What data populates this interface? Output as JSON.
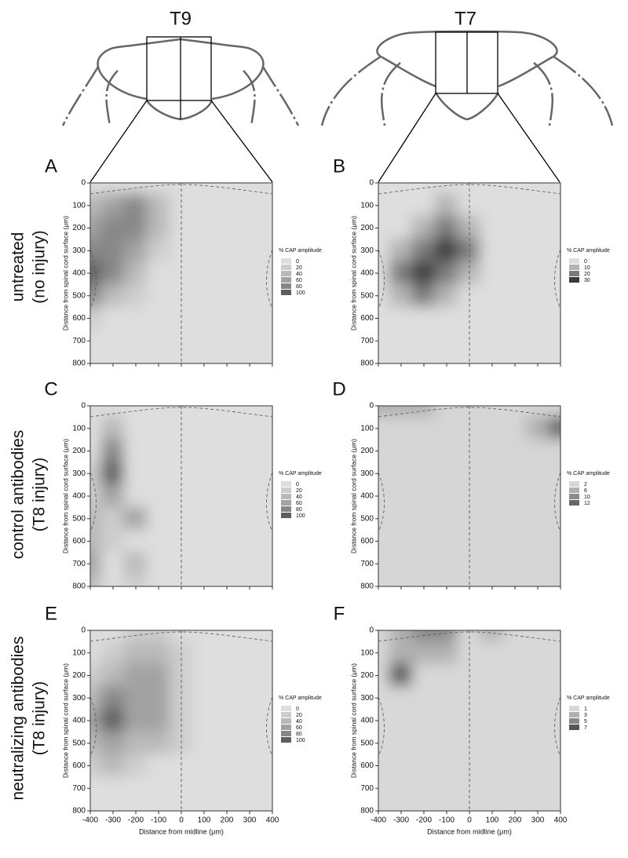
{
  "diagrams": [
    {
      "label": "T9"
    },
    {
      "label": "T7"
    }
  ],
  "row_labels": [
    [
      "untreated",
      "(no injury)"
    ],
    [
      "control  antibodies",
      "(T8 injury)"
    ],
    [
      "neutralizing antibodies",
      "(T8 injury)"
    ]
  ],
  "chart_data": [
    {
      "type": "contour",
      "panel": "A",
      "x": [
        -400,
        -300,
        -200,
        -100,
        0,
        100,
        200,
        300,
        400
      ],
      "y": [
        0,
        100,
        200,
        300,
        400,
        500,
        600,
        700,
        800
      ],
      "z": [
        [
          0,
          0,
          0,
          0,
          0,
          0,
          0,
          0,
          0
        ],
        [
          40,
          60,
          80,
          40,
          0,
          0,
          0,
          0,
          0
        ],
        [
          60,
          80,
          80,
          40,
          0,
          0,
          0,
          0,
          0
        ],
        [
          80,
          80,
          60,
          20,
          0,
          0,
          0,
          0,
          0
        ],
        [
          100,
          80,
          40,
          0,
          0,
          0,
          0,
          0,
          0
        ],
        [
          80,
          40,
          20,
          0,
          0,
          0,
          0,
          0,
          0
        ],
        [
          20,
          0,
          0,
          0,
          0,
          0,
          0,
          0,
          0
        ],
        [
          0,
          0,
          0,
          0,
          0,
          0,
          0,
          0,
          0
        ],
        [
          0,
          0,
          0,
          0,
          0,
          0,
          0,
          0,
          0
        ]
      ],
      "xlim": [
        -400,
        400
      ],
      "ylim": [
        0,
        800
      ],
      "invert_y": true,
      "xticks": [
        -400,
        -300,
        -200,
        -100,
        0,
        100,
        200,
        300,
        400
      ],
      "yticks": [
        0,
        100,
        200,
        300,
        400,
        500,
        600,
        700,
        800
      ],
      "show_xtick_labels": false,
      "ylabel": "Distance from spinal cord surface (μm)",
      "legend_title": "% CAP amplitude",
      "levels": [
        0,
        20,
        40,
        60,
        80,
        100
      ],
      "level_colors": [
        "#dedede",
        "#cdcdcd",
        "#b9b9b9",
        "#a2a2a2",
        "#878787",
        "#5e5e5e"
      ]
    },
    {
      "type": "contour",
      "panel": "B",
      "x": [
        -400,
        -300,
        -200,
        -100,
        0,
        100,
        200,
        300,
        400
      ],
      "y": [
        0,
        100,
        200,
        300,
        400,
        500,
        600,
        700,
        800
      ],
      "z": [
        [
          0,
          0,
          0,
          0,
          0,
          0,
          0,
          0,
          0
        ],
        [
          0,
          0,
          0,
          10,
          0,
          0,
          0,
          0,
          0
        ],
        [
          0,
          0,
          10,
          20,
          10,
          0,
          0,
          0,
          0
        ],
        [
          0,
          10,
          20,
          30,
          20,
          0,
          0,
          0,
          0
        ],
        [
          0,
          20,
          30,
          20,
          10,
          0,
          0,
          0,
          0
        ],
        [
          0,
          10,
          20,
          10,
          0,
          0,
          0,
          0,
          0
        ],
        [
          0,
          0,
          0,
          0,
          0,
          0,
          0,
          0,
          0
        ],
        [
          0,
          0,
          0,
          0,
          0,
          0,
          0,
          0,
          0
        ],
        [
          0,
          0,
          0,
          0,
          0,
          0,
          0,
          0,
          0
        ]
      ],
      "xlim": [
        -400,
        400
      ],
      "ylim": [
        0,
        800
      ],
      "invert_y": true,
      "xticks": [
        -400,
        -300,
        -200,
        -100,
        0,
        100,
        200,
        300,
        400
      ],
      "yticks": [
        0,
        100,
        200,
        300,
        400,
        500,
        600,
        700,
        800
      ],
      "show_xtick_labels": false,
      "ylabel": "Distance from spinal cord surface (μm)",
      "legend_title": "% CAP amplitude",
      "levels": [
        0,
        10,
        20,
        30
      ],
      "level_colors": [
        "#dedede",
        "#b4b4b4",
        "#7a7a7a",
        "#3a3a3a"
      ]
    },
    {
      "type": "contour",
      "panel": "C",
      "x": [
        -400,
        -300,
        -200,
        -100,
        0,
        100,
        200,
        300,
        400
      ],
      "y": [
        0,
        100,
        200,
        300,
        400,
        500,
        600,
        700,
        800
      ],
      "z": [
        [
          0,
          0,
          0,
          0,
          0,
          0,
          0,
          0,
          0
        ],
        [
          0,
          40,
          0,
          0,
          0,
          0,
          0,
          0,
          0
        ],
        [
          0,
          80,
          0,
          0,
          0,
          0,
          0,
          0,
          0
        ],
        [
          20,
          100,
          0,
          0,
          0,
          0,
          0,
          0,
          0
        ],
        [
          20,
          60,
          0,
          0,
          0,
          0,
          0,
          0,
          0
        ],
        [
          40,
          20,
          60,
          0,
          0,
          0,
          0,
          0,
          0
        ],
        [
          40,
          20,
          0,
          0,
          0,
          0,
          0,
          0,
          0
        ],
        [
          60,
          0,
          40,
          0,
          0,
          0,
          0,
          0,
          0
        ],
        [
          40,
          0,
          20,
          0,
          0,
          0,
          0,
          0,
          0
        ]
      ],
      "xlim": [
        -400,
        400
      ],
      "ylim": [
        0,
        800
      ],
      "invert_y": true,
      "xticks": [
        -400,
        -300,
        -200,
        -100,
        0,
        100,
        200,
        300,
        400
      ],
      "yticks": [
        0,
        100,
        200,
        300,
        400,
        500,
        600,
        700,
        800
      ],
      "show_xtick_labels": false,
      "ylabel": "Distance from spinal cord surface (μm)",
      "legend_title": "% CAP amplitude",
      "levels": [
        0,
        20,
        40,
        60,
        80,
        100
      ],
      "level_colors": [
        "#dedede",
        "#cdcdcd",
        "#b9b9b9",
        "#a2a2a2",
        "#878787",
        "#5e5e5e"
      ]
    },
    {
      "type": "contour",
      "panel": "D",
      "x": [
        -400,
        -300,
        -200,
        -100,
        0,
        100,
        200,
        300,
        400
      ],
      "y": [
        0,
        100,
        200,
        300,
        400,
        500,
        600,
        700,
        800
      ],
      "z": [
        [
          6,
          6,
          6,
          2,
          2,
          2,
          2,
          2,
          2
        ],
        [
          2,
          2,
          2,
          2,
          2,
          2,
          2,
          6,
          12
        ],
        [
          2,
          2,
          2,
          2,
          2,
          2,
          2,
          2,
          2
        ],
        [
          2,
          2,
          2,
          2,
          2,
          2,
          2,
          2,
          2
        ],
        [
          2,
          2,
          2,
          2,
          2,
          2,
          2,
          2,
          2
        ],
        [
          2,
          2,
          2,
          2,
          2,
          2,
          2,
          2,
          2
        ],
        [
          2,
          2,
          2,
          2,
          2,
          2,
          2,
          2,
          2
        ],
        [
          2,
          2,
          2,
          2,
          2,
          2,
          2,
          2,
          2
        ],
        [
          2,
          2,
          2,
          2,
          2,
          2,
          2,
          2,
          2
        ]
      ],
      "xlim": [
        -400,
        400
      ],
      "ylim": [
        0,
        800
      ],
      "invert_y": true,
      "xticks": [
        -400,
        -300,
        -200,
        -100,
        0,
        100,
        200,
        300,
        400
      ],
      "yticks": [
        0,
        100,
        200,
        300,
        400,
        500,
        600,
        700,
        800
      ],
      "show_xtick_labels": false,
      "ylabel": "Distance from spinal cord surface (μm)",
      "legend_title": "% CAP amplitude",
      "levels": [
        2,
        6,
        10,
        12
      ],
      "level_colors": [
        "#d6d6d6",
        "#b0b0b0",
        "#8a8a8a",
        "#666666"
      ]
    },
    {
      "type": "contour",
      "panel": "E",
      "x": [
        -400,
        -300,
        -200,
        -100,
        0,
        100,
        200,
        300,
        400
      ],
      "y": [
        0,
        100,
        200,
        300,
        400,
        500,
        600,
        700,
        800
      ],
      "z": [
        [
          0,
          0,
          20,
          20,
          0,
          0,
          0,
          0,
          0
        ],
        [
          0,
          20,
          40,
          40,
          20,
          0,
          0,
          0,
          0
        ],
        [
          20,
          40,
          60,
          60,
          20,
          0,
          0,
          0,
          0
        ],
        [
          40,
          80,
          60,
          60,
          20,
          0,
          0,
          0,
          0
        ],
        [
          60,
          100,
          60,
          60,
          20,
          0,
          0,
          0,
          0
        ],
        [
          40,
          60,
          40,
          40,
          20,
          0,
          0,
          0,
          0
        ],
        [
          20,
          40,
          20,
          0,
          0,
          0,
          0,
          0,
          0
        ],
        [
          0,
          0,
          0,
          0,
          0,
          0,
          0,
          0,
          0
        ],
        [
          0,
          0,
          0,
          0,
          0,
          0,
          0,
          0,
          0
        ]
      ],
      "xlim": [
        -400,
        400
      ],
      "ylim": [
        0,
        800
      ],
      "invert_y": true,
      "xticks": [
        -400,
        -300,
        -200,
        -100,
        0,
        100,
        200,
        300,
        400
      ],
      "yticks": [
        0,
        100,
        200,
        300,
        400,
        500,
        600,
        700,
        800
      ],
      "show_xtick_labels": true,
      "xlabel": "Distance from midline (μm)",
      "ylabel": "Distance from spinal cord surface (μm)",
      "legend_title": "% CAP amplitude",
      "levels": [
        0,
        20,
        40,
        60,
        80,
        100
      ],
      "level_colors": [
        "#dedede",
        "#cdcdcd",
        "#b9b9b9",
        "#a2a2a2",
        "#878787",
        "#5e5e5e"
      ]
    },
    {
      "type": "contour",
      "panel": "F",
      "x": [
        -400,
        -300,
        -200,
        -100,
        0,
        100,
        200,
        300,
        400
      ],
      "y": [
        0,
        100,
        200,
        300,
        400,
        500,
        600,
        700,
        800
      ],
      "z": [
        [
          1,
          3,
          5,
          5,
          1,
          3,
          1,
          1,
          1
        ],
        [
          1,
          3,
          3,
          3,
          1,
          1,
          1,
          1,
          1
        ],
        [
          1,
          7,
          1,
          1,
          1,
          1,
          1,
          1,
          1
        ],
        [
          1,
          1,
          1,
          1,
          1,
          1,
          1,
          1,
          1
        ],
        [
          1,
          1,
          1,
          1,
          1,
          1,
          1,
          1,
          1
        ],
        [
          1,
          1,
          1,
          1,
          1,
          1,
          1,
          1,
          1
        ],
        [
          1,
          1,
          1,
          1,
          1,
          1,
          1,
          1,
          1
        ],
        [
          1,
          1,
          1,
          1,
          1,
          1,
          1,
          1,
          1
        ],
        [
          1,
          1,
          1,
          1,
          1,
          1,
          1,
          1,
          1
        ]
      ],
      "xlim": [
        -400,
        400
      ],
      "ylim": [
        0,
        800
      ],
      "invert_y": true,
      "xticks": [
        -400,
        -300,
        -200,
        -100,
        0,
        100,
        200,
        300,
        400
      ],
      "yticks": [
        0,
        100,
        200,
        300,
        400,
        500,
        600,
        700,
        800
      ],
      "show_xtick_labels": true,
      "xlabel": "Distance from midline (μm)",
      "ylabel": "Distance from spinal cord surface (μm)",
      "legend_title": "% CAP amplitude",
      "levels": [
        1,
        3,
        5,
        7
      ],
      "level_colors": [
        "#d8d8d8",
        "#b0b0b0",
        "#888888",
        "#555555"
      ]
    }
  ]
}
